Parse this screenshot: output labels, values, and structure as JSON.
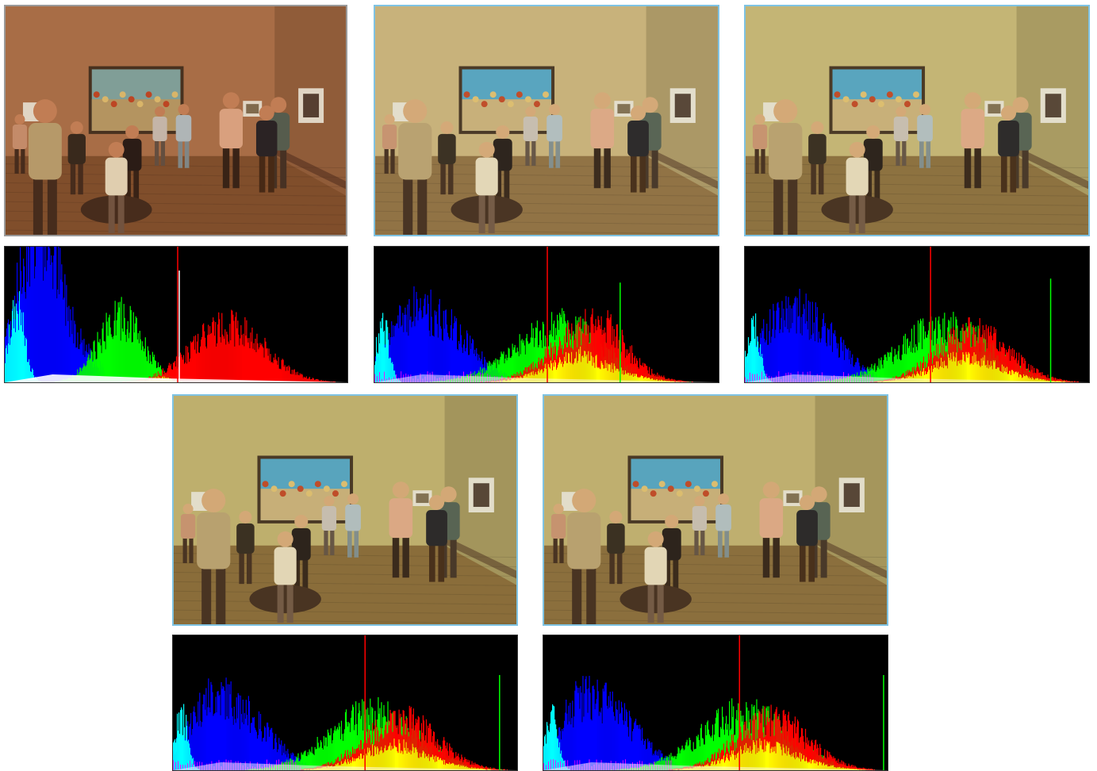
{
  "panels": [
    {
      "variant": "original",
      "wall": "#a86e48",
      "wall_shadow": "#8d5a3a",
      "floor": "#7a4a2a",
      "tint": "#b06a3c"
    },
    {
      "variant": "corrected-1",
      "wall": "#c9b27c",
      "wall_shadow": "#a89564",
      "floor": "#8a6a3e",
      "tint": "#c7b27a"
    },
    {
      "variant": "corrected-2",
      "wall": "#c4b576",
      "wall_shadow": "#a59860",
      "floor": "#86693a",
      "tint": "#c3b574"
    },
    {
      "variant": "corrected-3",
      "wall": "#bfb06e",
      "wall_shadow": "#a0925a",
      "floor": "#836534",
      "tint": "#bdae6c"
    },
    {
      "variant": "corrected-4",
      "wall": "#c0b070",
      "wall_shadow": "#a2935b",
      "floor": "#856737",
      "tint": "#beaf6e"
    }
  ],
  "histogram_colors": {
    "red": "#ff0000",
    "green": "#00ff00",
    "blue": "#0000ff",
    "cyan": "#00ffff",
    "yellow": "#ffff00",
    "magenta": "#ff00ff",
    "white": "#ffffff"
  }
}
